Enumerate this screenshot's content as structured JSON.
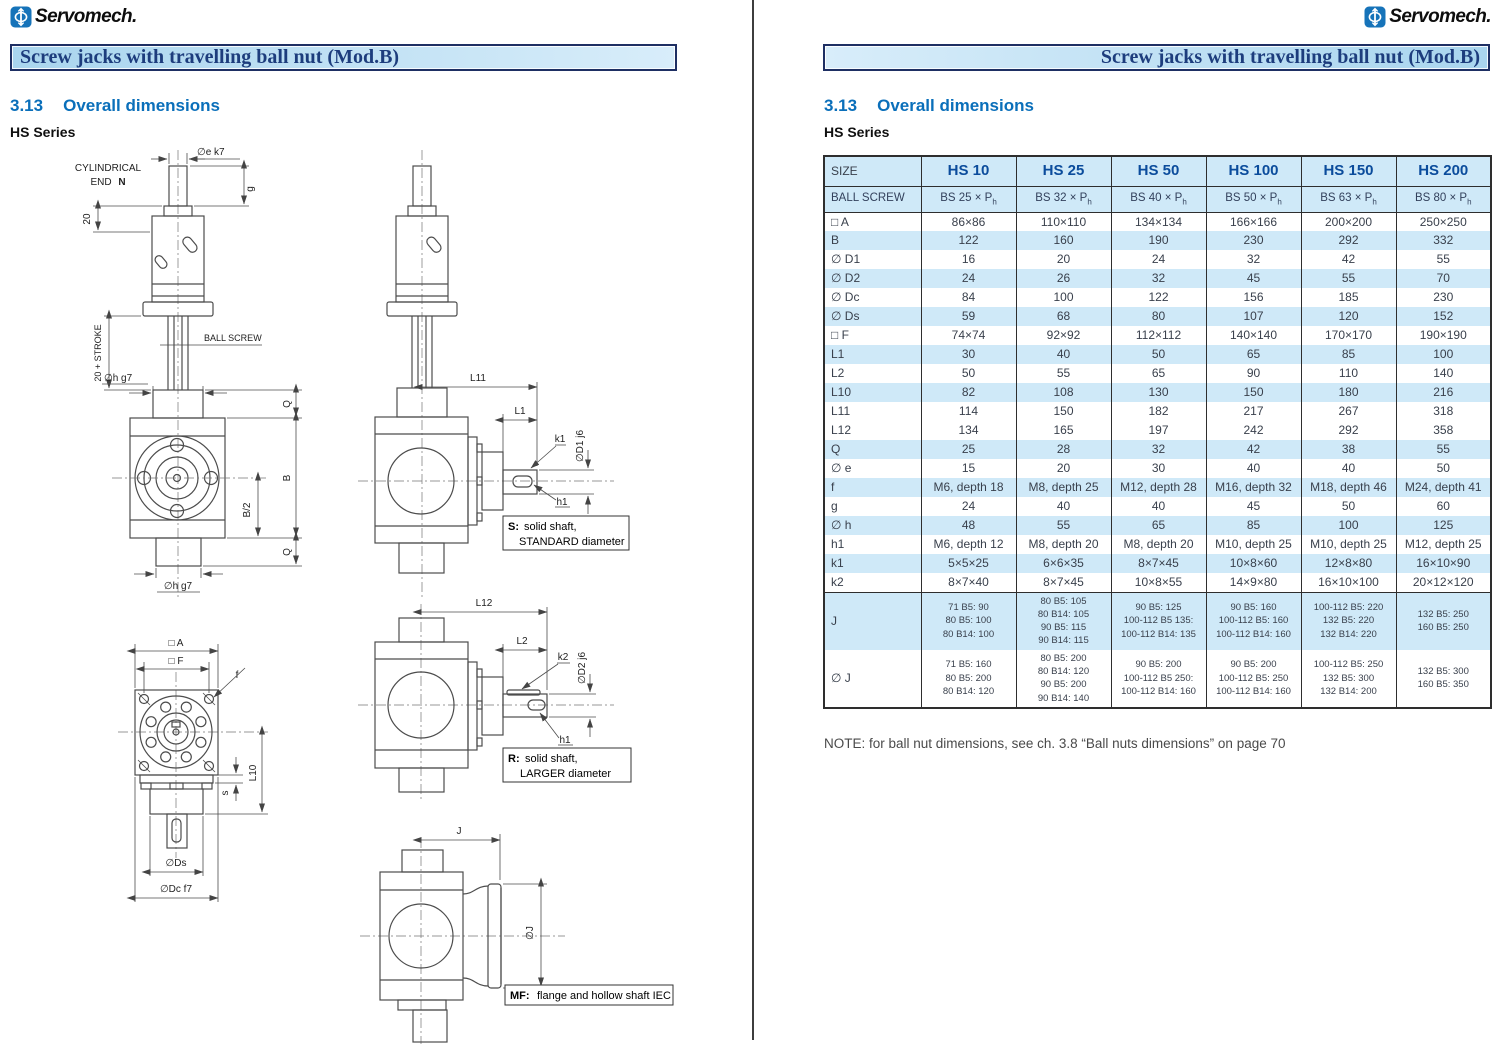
{
  "brand": {
    "name": "Servomech.",
    "icon": "servomech-phi-icon",
    "icon_color": "#1673b9"
  },
  "divider_color": "#3d3d3d",
  "left_page": {
    "banner": "Screw jacks with travelling ball nut (Mod.B)",
    "section_no": "3.13",
    "section_title": "Overall dimensions",
    "series": "HS Series",
    "drawings": {
      "front_view": {
        "cyl1": "CYLINDRICAL",
        "cyl2": "END",
        "cyl3": "N",
        "de_k7": "∅e k7",
        "g": "g",
        "d20": "20",
        "stroke": "20 + STROKE",
        "ball_screw": "BALL SCREW",
        "dh_g7_top": "∅h g7",
        "dh_g7_bottom": "∅h g7",
        "q_top": "Q",
        "b": "B",
        "b2": "B/2",
        "q_bottom": "Q"
      },
      "side_view_s": {
        "l11": "L11",
        "l1": "L1",
        "k1": "k1",
        "d1": "∅D1 j6",
        "h1": "h1",
        "box_key": "S:",
        "box_line1": "solid shaft,",
        "box_line2": "STANDARD diameter"
      },
      "side_view_r": {
        "l12": "L12",
        "l2": "L2",
        "k2": "k2",
        "d2": "∅D2 j6",
        "h1": "h1",
        "box_key": "R:",
        "box_line1": "solid shaft,",
        "box_line2": "LARGER diameter"
      },
      "top_view": {
        "a": "□ A",
        "f_sq": "□ F",
        "f": "f",
        "l10": "L10",
        "s": "s",
        "ds": "∅Ds",
        "dc": "∅Dc f7"
      },
      "mf_view": {
        "j": "J",
        "dj": "∅J",
        "box_key": "MF:",
        "box_text": "flange and hollow shaft IEC"
      }
    }
  },
  "right_page": {
    "banner": "Screw jacks with travelling ball nut (Mod.B)",
    "section_no": "3.13",
    "section_title": "Overall dimensions",
    "series": "HS Series",
    "table": {
      "size_label": "SIZE",
      "sizes": [
        "HS 10",
        "HS 25",
        "HS 50",
        "HS 100",
        "HS 150",
        "HS 200"
      ],
      "ballscrew_label": "BALL SCREW",
      "ball_screws": [
        "BS 25 × P",
        "BS 32 × P",
        "BS 40 × P",
        "BS 50 × P",
        "BS 63 × P",
        "BS 80 × P"
      ],
      "pitch_sub": "h",
      "shade_color": "#cfe9f8",
      "header_text_color": "#0b4c9c",
      "rows": [
        {
          "label": "□ A",
          "shaded": false,
          "values": [
            "86×86",
            "110×110",
            "134×134",
            "166×166",
            "200×200",
            "250×250"
          ]
        },
        {
          "label": "B",
          "shaded": true,
          "values": [
            "122",
            "160",
            "190",
            "230",
            "292",
            "332"
          ]
        },
        {
          "label": "∅ D1",
          "shaded": false,
          "values": [
            "16",
            "20",
            "24",
            "32",
            "42",
            "55"
          ]
        },
        {
          "label": "∅ D2",
          "shaded": true,
          "values": [
            "24",
            "26",
            "32",
            "45",
            "55",
            "70"
          ]
        },
        {
          "label": "∅ Dc",
          "shaded": false,
          "values": [
            "84",
            "100",
            "122",
            "156",
            "185",
            "230"
          ]
        },
        {
          "label": "∅ Ds",
          "shaded": true,
          "values": [
            "59",
            "68",
            "80",
            "107",
            "120",
            "152"
          ]
        },
        {
          "label": "□ F",
          "shaded": false,
          "values": [
            "74×74",
            "92×92",
            "112×112",
            "140×140",
            "170×170",
            "190×190"
          ]
        },
        {
          "label": "L1",
          "shaded": true,
          "values": [
            "30",
            "40",
            "50",
            "65",
            "85",
            "100"
          ]
        },
        {
          "label": "L2",
          "shaded": false,
          "values": [
            "50",
            "55",
            "65",
            "90",
            "110",
            "140"
          ]
        },
        {
          "label": "L10",
          "shaded": true,
          "values": [
            "82",
            "108",
            "130",
            "150",
            "180",
            "216"
          ]
        },
        {
          "label": "L11",
          "shaded": false,
          "values": [
            "114",
            "150",
            "182",
            "217",
            "267",
            "318"
          ]
        },
        {
          "label": "L12",
          "shaded": false,
          "values": [
            "134",
            "165",
            "197",
            "242",
            "292",
            "358"
          ]
        },
        {
          "label": "Q",
          "shaded": true,
          "values": [
            "25",
            "28",
            "32",
            "42",
            "38",
            "55"
          ]
        },
        {
          "label": "∅ e",
          "shaded": false,
          "values": [
            "15",
            "20",
            "30",
            "40",
            "40",
            "50"
          ]
        },
        {
          "label": "f",
          "shaded": true,
          "values": [
            "M6, depth 18",
            "M8, depth 25",
            "M12, depth 28",
            "M16, depth 32",
            "M18, depth 46",
            "M24, depth 41"
          ]
        },
        {
          "label": "g",
          "shaded": false,
          "values": [
            "24",
            "40",
            "40",
            "45",
            "50",
            "60"
          ]
        },
        {
          "label": "∅ h",
          "shaded": true,
          "values": [
            "48",
            "55",
            "65",
            "85",
            "100",
            "125"
          ]
        },
        {
          "label": "h1",
          "shaded": false,
          "values": [
            "M6, depth 12",
            "M8, depth 20",
            "M8, depth 20",
            "M10, depth 25",
            "M10, depth 25",
            "M12, depth 25"
          ]
        },
        {
          "label": "k1",
          "shaded": true,
          "values": [
            "5×5×25",
            "6×6×35",
            "8×7×45",
            "10×8×60",
            "12×8×80",
            "16×10×90"
          ]
        },
        {
          "label": "k2",
          "shaded": false,
          "values": [
            "8×7×40",
            "8×7×45",
            "10×8×55",
            "14×9×80",
            "16×10×100",
            "20×12×120"
          ]
        },
        {
          "label": "J",
          "shaded": true,
          "values": [
            [
              "71 B5: 90",
              "80 B5: 100",
              "80 B14: 100"
            ],
            [
              "80 B5: 105",
              "80 B14: 105",
              "90 B5: 115",
              "90 B14: 115"
            ],
            [
              "90 B5: 125",
              "100-112 B5 135:",
              "100-112 B14: 135"
            ],
            [
              "90 B5: 160",
              "100-112 B5: 160",
              "100-112 B14: 160"
            ],
            [
              "100-112 B5: 220",
              "132 B5: 220",
              "132 B14: 220"
            ],
            [
              "132 B5: 250",
              "160 B5: 250"
            ]
          ]
        },
        {
          "label": "∅ J",
          "shaded": false,
          "values": [
            [
              "71 B5: 160",
              "80 B5: 200",
              "80 B14: 120"
            ],
            [
              "80 B5: 200",
              "80 B14: 120",
              "90 B5: 200",
              "90 B14: 140"
            ],
            [
              "90 B5: 200",
              "100-112 B5 250:",
              "100-112 B14: 160"
            ],
            [
              "90 B5: 200",
              "100-112 B5: 250",
              "100-112 B14: 160"
            ],
            [
              "100-112 B5: 250",
              "132 B5: 300",
              "132 B14: 200"
            ],
            [
              "132 B5: 300",
              "160 B5: 350"
            ]
          ]
        }
      ]
    },
    "note": "NOTE: for ball nut dimensions, see ch. 3.8 “Ball nuts dimensions” on page 70"
  }
}
